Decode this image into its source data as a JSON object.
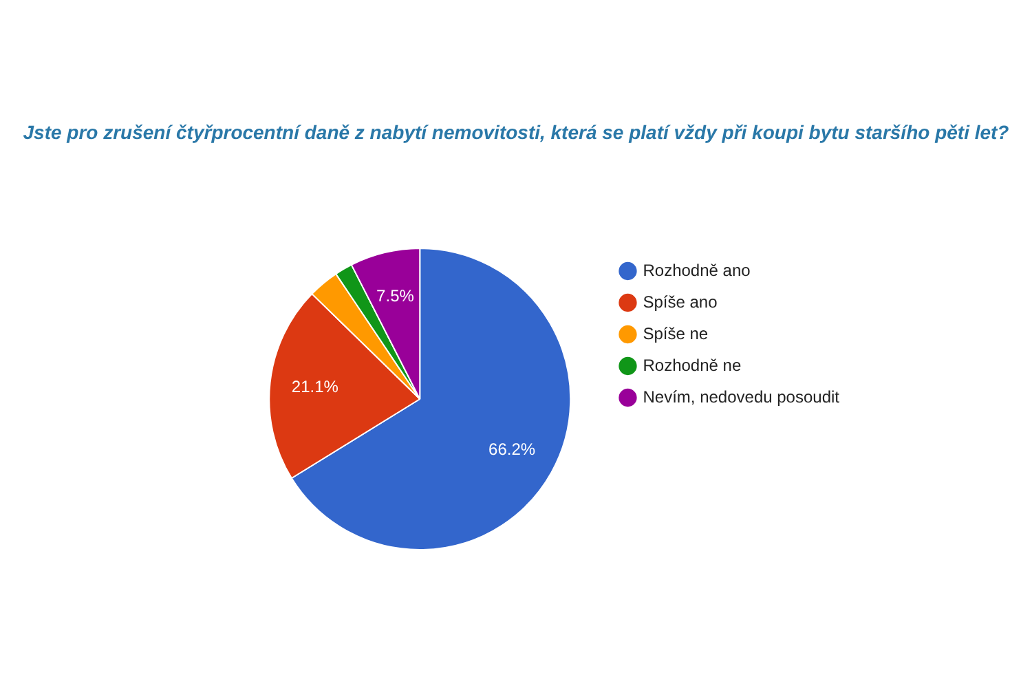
{
  "chart_data": {
    "type": "pie",
    "title": "Jste pro zrušení čtyřprocentní daně z nabytí nemovitosti, která se platí vždy při koupi bytu staršího pěti let?",
    "categories": [
      "Rozhodně ano",
      "Spíše ano",
      "Spíše ne",
      "Rozhodně ne",
      "Nevím, nedovedu posoudit"
    ],
    "values": [
      66.2,
      21.1,
      3.3,
      1.9,
      7.5
    ],
    "colors": [
      "#3366cc",
      "#dc3912",
      "#ff9900",
      "#109618",
      "#990099"
    ],
    "value_labels": [
      "66.2%",
      "21.1%",
      null,
      null,
      "7.5%"
    ],
    "legend": "right"
  }
}
